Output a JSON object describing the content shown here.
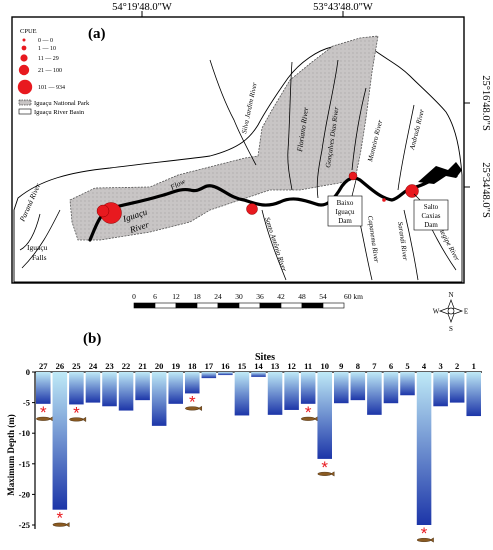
{
  "map": {
    "panel_label": "(a)",
    "coord_top_left": "54°19'48.0\"W",
    "coord_top_right": "53°43'48.0\"W",
    "coord_right_upper": "25°16'48.0\"S",
    "coord_right_lower": "25°34'48.0\"S",
    "legend": {
      "title": "CPUE",
      "classes": [
        "0 — 0",
        "1 — 10",
        "11 — 29",
        "21 — 100",
        "101 — 934"
      ],
      "park_label": "Iguaçu National Park",
      "basin_label": "Iguaçu River Basin"
    },
    "place_labels": {
      "parana": "Paraná River",
      "iguacu_falls_1": "Iguaçu",
      "iguacu_falls_2": "Falls",
      "iguacu_river_1": "Iguaçu",
      "iguacu_river_2": "River",
      "flow": "Flow",
      "silva_jardim": "Silva Jardim River",
      "floriano": "Floriano River",
      "goncalves_dias": "Gonçalves Dias River",
      "monteiro": "Monteiro River",
      "andrada": "Andrada River",
      "santo_antonio": "Santo Antônio River",
      "capanema": "Capanema River",
      "sarandi": "Sarandi River",
      "cotegipe": "Cotegipe River",
      "baixo_1": "Baixo",
      "baixo_2": "Iguaçu",
      "baixo_3": "Dam",
      "salto_1": "Salto",
      "salto_2": "Caxias",
      "salto_3": "Dam"
    },
    "scale": {
      "ticks": [
        "0",
        "6",
        "12",
        "18",
        "24",
        "30",
        "36",
        "42",
        "48",
        "54",
        "60 km"
      ]
    },
    "compass": {
      "n": "N",
      "s": "S",
      "e": "E",
      "w": "W"
    },
    "colors": {
      "park": "#c8c5c5",
      "dot": "#e8191f",
      "river": "#000000"
    }
  },
  "chart_data": {
    "type": "bar",
    "panel_label": "(b)",
    "title": "Sites",
    "ylabel": "Maximum Depth (m)",
    "ylim": [
      -25,
      0
    ],
    "yticks": [
      0,
      -5,
      -10,
      -15,
      -20,
      -25
    ],
    "categories": [
      "27",
      "26",
      "25",
      "24",
      "23",
      "22",
      "21",
      "20",
      "19",
      "18",
      "17",
      "16",
      "15",
      "14",
      "13",
      "12",
      "11",
      "10",
      "9",
      "8",
      "7",
      "6",
      "5",
      "4",
      "3",
      "2",
      "1"
    ],
    "values": [
      -5.2,
      -22.5,
      -5.3,
      -5.0,
      -5.6,
      -6.3,
      -4.6,
      -8.8,
      -5.2,
      -3.5,
      -1.0,
      -0.5,
      -7.1,
      -0.8,
      -7.0,
      -6.2,
      -5.2,
      -14.2,
      -5.1,
      -4.6,
      -7.0,
      -5.1,
      -3.8,
      -25.0,
      -5.6,
      -5.0,
      -7.2
    ],
    "starred_sites": [
      "27",
      "26",
      "25",
      "18",
      "11",
      "10",
      "4"
    ],
    "bar_gradient": [
      "#bfeaf7",
      "#1c35a8"
    ]
  }
}
